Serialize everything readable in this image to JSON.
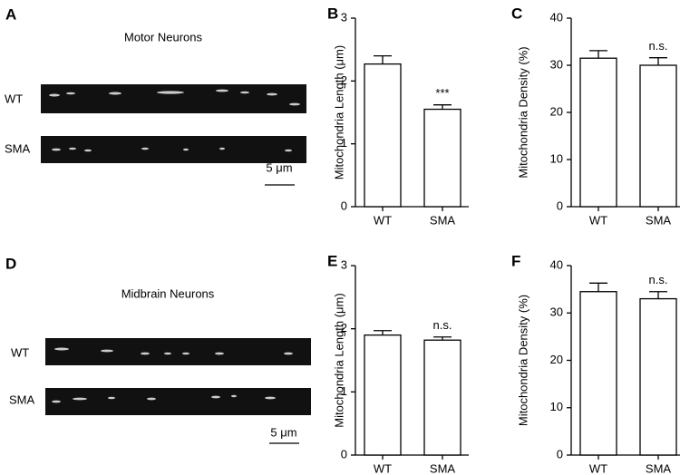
{
  "image_panels": [
    {
      "panel": "A",
      "title": "Motor Neurons",
      "rows": [
        "WT",
        "SMA"
      ],
      "scale_bar": "5 μm"
    },
    {
      "panel": "D",
      "title": "Midbrain Neurons",
      "rows": [
        "WT",
        "SMA"
      ],
      "scale_bar": "5 μm"
    }
  ],
  "chart_data": [
    {
      "type": "bar",
      "panel": "B",
      "ylabel": "Mitochondria Length (μm)",
      "categories": [
        "WT",
        "SMA"
      ],
      "values": [
        2.27,
        1.55
      ],
      "errors": [
        0.13,
        0.07
      ],
      "annotations": [
        null,
        "***"
      ],
      "color": "#ffffff",
      "ylim": [
        0,
        3
      ],
      "yticks": [
        0,
        1,
        2,
        3
      ]
    },
    {
      "type": "bar",
      "panel": "C",
      "ylabel": "Mitochondria Density (%)",
      "categories": [
        "WT",
        "SMA"
      ],
      "values": [
        31.5,
        30.0
      ],
      "errors": [
        1.6,
        1.6
      ],
      "annotations": [
        null,
        "n.s."
      ],
      "color": "#ffffff",
      "ylim": [
        0,
        40
      ],
      "yticks": [
        0,
        10,
        20,
        30,
        40
      ]
    },
    {
      "type": "bar",
      "panel": "E",
      "ylabel": "Mitochondria Length (μm)",
      "categories": [
        "WT",
        "SMA"
      ],
      "values": [
        1.9,
        1.82
      ],
      "errors": [
        0.07,
        0.05
      ],
      "annotations": [
        null,
        "n.s."
      ],
      "color": "#ffffff",
      "ylim": [
        0,
        3
      ],
      "yticks": [
        0,
        1,
        2,
        3
      ]
    },
    {
      "type": "bar",
      "panel": "F",
      "ylabel": "Mitochondria Density (%)",
      "categories": [
        "WT",
        "SMA"
      ],
      "values": [
        34.5,
        33.0
      ],
      "errors": [
        1.8,
        1.5
      ],
      "annotations": [
        null,
        "n.s."
      ],
      "color": "#ffffff",
      "ylim": [
        0,
        40
      ],
      "yticks": [
        0,
        10,
        20,
        30,
        40
      ]
    }
  ]
}
